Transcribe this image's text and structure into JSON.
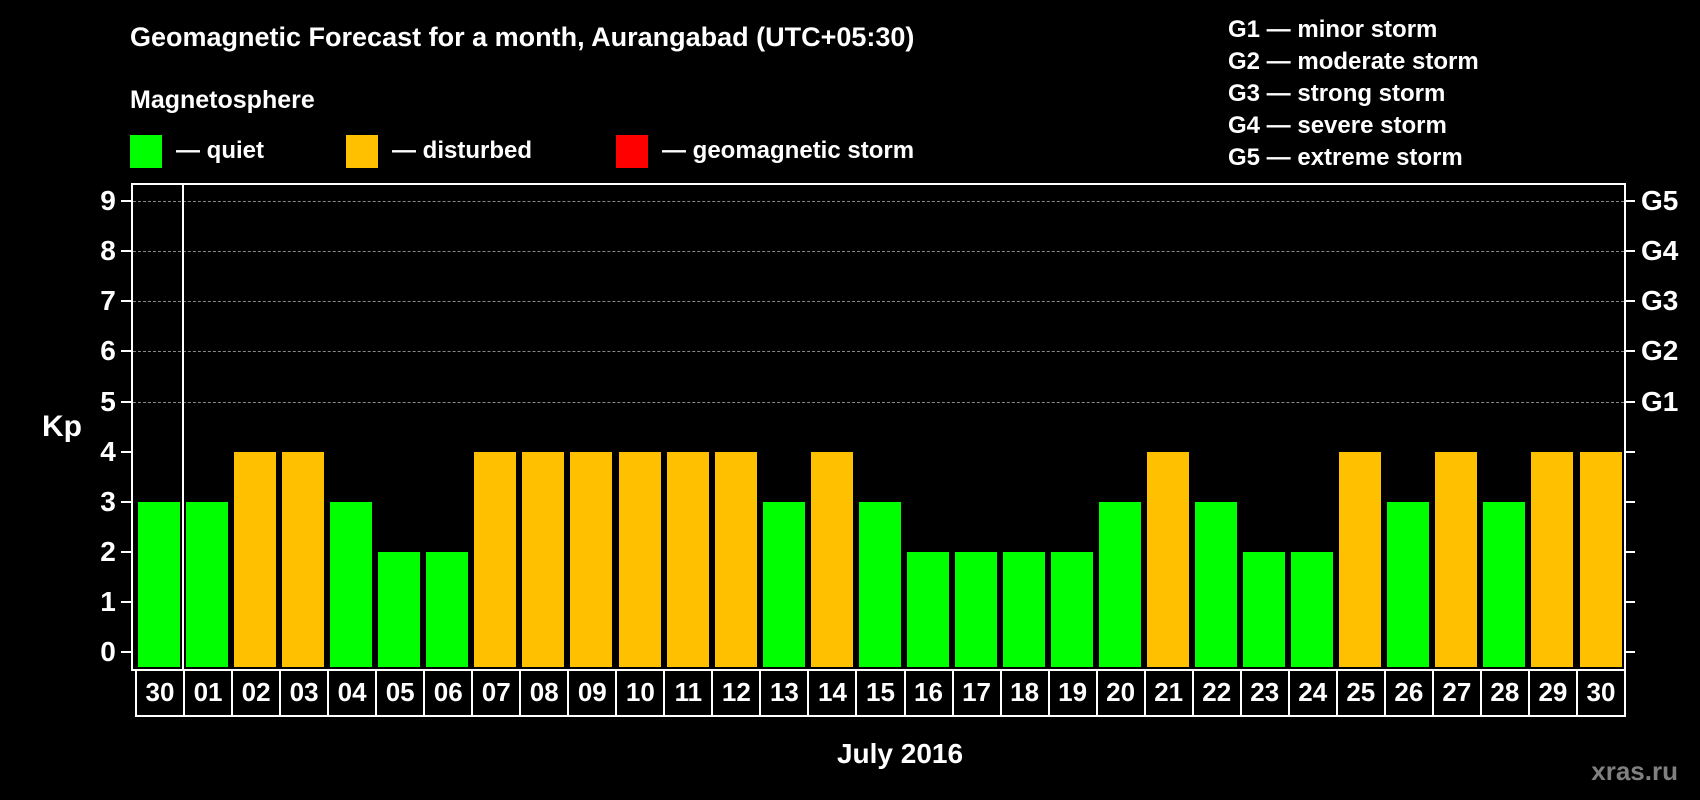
{
  "header": {
    "title": "Geomagnetic Forecast for a month, Aurangabad (UTC+05:30)",
    "subtitle": "Magnetosphere"
  },
  "legend": [
    {
      "label": "— quiet",
      "color": "#00ff00"
    },
    {
      "label": "— disturbed",
      "color": "#ffc000"
    },
    {
      "label": "— geomagnetic storm",
      "color": "#ff0000"
    }
  ],
  "storm_legend": [
    "G1 — minor storm",
    "G2 — moderate storm",
    "G3 — strong storm",
    "G4 — severe storm",
    "G5 — extreme storm"
  ],
  "watermark": "xras.ru",
  "chart_data": {
    "type": "bar",
    "title": "Geomagnetic Forecast for a month, Aurangabad (UTC+05:30)",
    "xlabel": "July 2016",
    "ylabel": "Kp",
    "ylim": [
      0,
      9
    ],
    "yticks": [
      0,
      1,
      2,
      3,
      4,
      5,
      6,
      7,
      8,
      9
    ],
    "right_axis_labels": {
      "5": "G1",
      "6": "G2",
      "7": "G3",
      "8": "G4",
      "9": "G5"
    },
    "grid": "dashed horizontal lines at 5–9",
    "categories": [
      "30",
      "01",
      "02",
      "03",
      "04",
      "05",
      "06",
      "07",
      "08",
      "09",
      "10",
      "11",
      "12",
      "13",
      "14",
      "15",
      "16",
      "17",
      "18",
      "19",
      "20",
      "21",
      "22",
      "23",
      "24",
      "25",
      "26",
      "27",
      "28",
      "29",
      "30"
    ],
    "values": [
      3,
      3,
      4,
      4,
      3,
      2,
      2,
      4,
      4,
      4,
      4,
      4,
      4,
      3,
      4,
      3,
      2,
      2,
      2,
      2,
      3,
      4,
      3,
      2,
      2,
      4,
      3,
      4,
      3,
      4,
      4
    ],
    "status": [
      "quiet",
      "quiet",
      "disturbed",
      "disturbed",
      "quiet",
      "quiet",
      "quiet",
      "disturbed",
      "disturbed",
      "disturbed",
      "disturbed",
      "disturbed",
      "disturbed",
      "quiet",
      "disturbed",
      "quiet",
      "quiet",
      "quiet",
      "quiet",
      "quiet",
      "quiet",
      "disturbed",
      "quiet",
      "quiet",
      "quiet",
      "disturbed",
      "quiet",
      "disturbed",
      "quiet",
      "disturbed",
      "disturbed"
    ],
    "colors": {
      "quiet": "#00ff00",
      "disturbed": "#ffc000",
      "storm": "#ff0000"
    }
  }
}
